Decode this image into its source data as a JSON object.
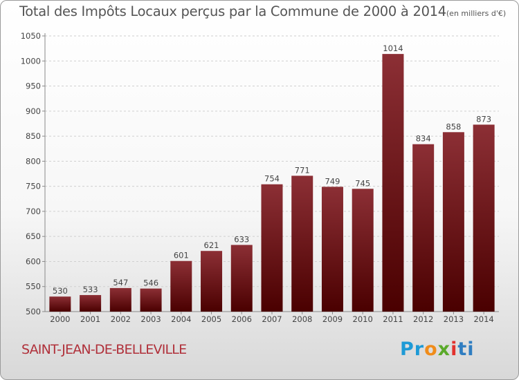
{
  "chart_data": {
    "type": "bar",
    "title": "Total des Impôts Locaux perçus par la Commune de 2000 à 2014",
    "unit_note": "(en milliers d'€)",
    "categories": [
      "2000",
      "2001",
      "2002",
      "2003",
      "2004",
      "2005",
      "2006",
      "2007",
      "2008",
      "2009",
      "2010",
      "2011",
      "2012",
      "2013",
      "2014"
    ],
    "values": [
      530,
      533,
      547,
      546,
      601,
      621,
      633,
      754,
      771,
      749,
      745,
      1014,
      834,
      858,
      873
    ],
    "ylim": [
      500,
      1050
    ],
    "yticks": [
      500,
      550,
      600,
      650,
      700,
      750,
      800,
      850,
      900,
      950,
      1000,
      1050
    ],
    "xlabel": "",
    "ylabel": "",
    "bar_color_top": "#8c2f35",
    "bar_color_bottom": "#4a0000"
  },
  "commune": "SAINT-JEAN-DE-BELLEVILLE",
  "logo": {
    "part1": "Pr",
    "part2": "o",
    "part3": "x",
    "part4": "i",
    "part5": "ti"
  }
}
